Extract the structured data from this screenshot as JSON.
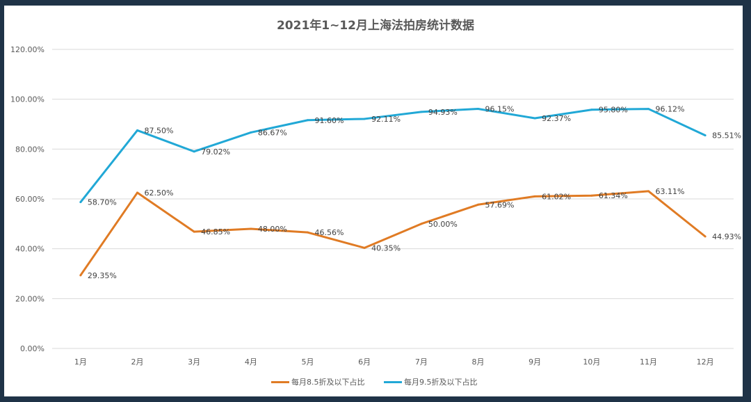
{
  "chart_data": {
    "type": "line",
    "title": "2021年1~12月上海法拍房统计数据",
    "categories": [
      "1月",
      "2月",
      "3月",
      "4月",
      "5月",
      "6月",
      "7月",
      "8月",
      "9月",
      "10月",
      "11月",
      "12月"
    ],
    "ylim": [
      0,
      120
    ],
    "yticks": [
      "0.00%",
      "20.00%",
      "40.00%",
      "60.00%",
      "80.00%",
      "100.00%",
      "120.00%"
    ],
    "grid": true,
    "legend_position": "bottom",
    "series": [
      {
        "name": "每月8.5折及以下占比",
        "color": "#e07b24",
        "values": [
          29.35,
          62.5,
          46.85,
          48.0,
          46.56,
          40.35,
          50.0,
          57.69,
          61.02,
          61.34,
          63.11,
          44.93
        ],
        "labels": [
          "29.35%",
          "62.50%",
          "46.85%",
          "48.00%",
          "46.56%",
          "40.35%",
          "50.00%",
          "57.69%",
          "61.02%",
          "61.34%",
          "63.11%",
          "44.93%"
        ]
      },
      {
        "name": "每月9.5折及以下占比",
        "color": "#21a8d6",
        "values": [
          58.7,
          87.5,
          79.02,
          86.67,
          91.6,
          92.11,
          94.93,
          96.15,
          92.37,
          95.8,
          96.12,
          85.51
        ],
        "labels": [
          "58.70%",
          "87.50%",
          "79.02%",
          "86.67%",
          "91.60%",
          "92.11%",
          "94.93%",
          "96.15%",
          "92.37%",
          "95.80%",
          "96.12%",
          "85.51%"
        ]
      }
    ]
  }
}
